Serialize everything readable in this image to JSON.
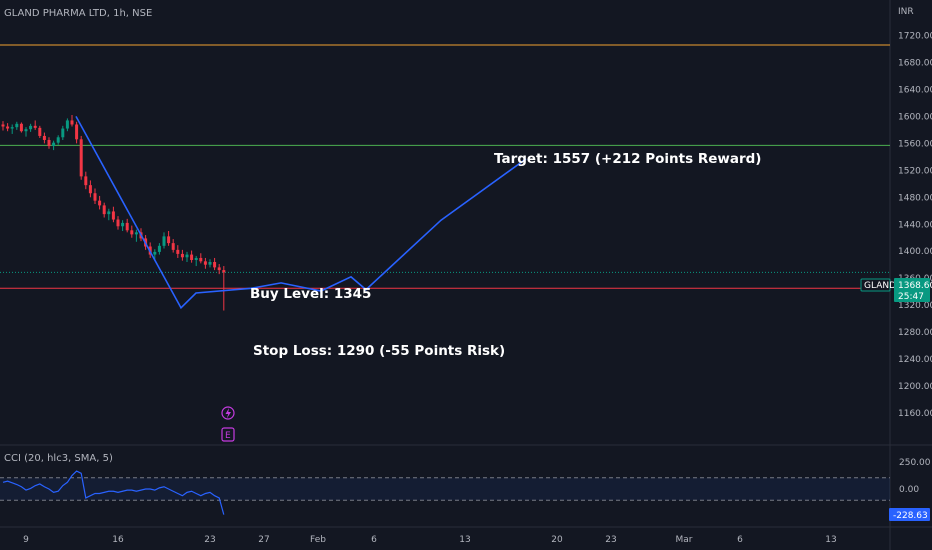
{
  "header": {
    "symbol_title": "GLAND PHARMA LTD, 1h, NSE",
    "currency": "INR"
  },
  "price_tag": {
    "symbol": "GLAND",
    "price": "1368.60",
    "countdown": "25:47",
    "color": "#089981"
  },
  "indicator": {
    "label": "CCI (20, hlc3, SMA, 5)",
    "ticks": [
      "250.00",
      "0.00"
    ],
    "current_value": "-228.63",
    "band_upper": 100,
    "band_lower": -100,
    "color": "#2962ff"
  },
  "annotations": {
    "target": "Target: 1557 (+212 Points Reward)",
    "buy": "Buy Level: 1345",
    "stop": "Stop Loss: 1290 (-55 Points Risk)"
  },
  "markers": {
    "dividend_icon": "lightning-icon",
    "earnings_label": "E"
  },
  "chart_data": {
    "type": "candlestick",
    "title": "GLAND PHARMA LTD, 1h, NSE",
    "x_ticks": [
      "9",
      "16",
      "23",
      "27",
      "Feb",
      "6",
      "13",
      "20",
      "23",
      "Mar",
      "6",
      "13"
    ],
    "y_ticks": [
      1720,
      1680,
      1640,
      1600,
      1560,
      1520,
      1480,
      1440,
      1400,
      1360,
      1320,
      1280,
      1240,
      1200,
      1160
    ],
    "ylim": [
      1140,
      1750
    ],
    "horizontal_lines": [
      {
        "value": 1706,
        "color": "#f0a030"
      },
      {
        "value": 1557,
        "color": "#4caf50"
      },
      {
        "value": 1345,
        "color": "#f23645"
      },
      {
        "value": 1368.6,
        "color": "#089981",
        "style": "dotted"
      }
    ],
    "projection_path": [
      {
        "bar": 0,
        "value": 1600
      },
      {
        "bar": 21,
        "value": 1316
      },
      {
        "bar": 24,
        "value": 1338
      },
      {
        "bar": 35,
        "value": 1345
      },
      {
        "bar": 41,
        "value": 1353
      },
      {
        "bar": 49,
        "value": 1341
      },
      {
        "bar": 55,
        "value": 1362
      },
      {
        "bar": 58,
        "value": 1343
      },
      {
        "bar": 73,
        "value": 1446
      },
      {
        "bar": 90,
        "value": 1537
      }
    ],
    "candles": [
      [
        1588,
        1593,
        1579,
        1585
      ],
      [
        1585,
        1590,
        1578,
        1582
      ],
      [
        1582,
        1588,
        1574,
        1584
      ],
      [
        1584,
        1592,
        1580,
        1589
      ],
      [
        1589,
        1591,
        1576,
        1578
      ],
      [
        1578,
        1584,
        1570,
        1581
      ],
      [
        1581,
        1589,
        1577,
        1586
      ],
      [
        1586,
        1594,
        1580,
        1583
      ],
      [
        1583,
        1586,
        1568,
        1571
      ],
      [
        1571,
        1576,
        1560,
        1565
      ],
      [
        1565,
        1569,
        1552,
        1556
      ],
      [
        1556,
        1564,
        1550,
        1561
      ],
      [
        1561,
        1572,
        1558,
        1569
      ],
      [
        1569,
        1586,
        1565,
        1582
      ],
      [
        1582,
        1597,
        1578,
        1594
      ],
      [
        1594,
        1602,
        1585,
        1588
      ],
      [
        1588,
        1592,
        1560,
        1566
      ],
      [
        1566,
        1571,
        1506,
        1511
      ],
      [
        1511,
        1518,
        1492,
        1498
      ],
      [
        1498,
        1505,
        1480,
        1486
      ],
      [
        1486,
        1493,
        1470,
        1475
      ],
      [
        1475,
        1482,
        1462,
        1468
      ],
      [
        1468,
        1472,
        1450,
        1455
      ],
      [
        1455,
        1463,
        1446,
        1459
      ],
      [
        1459,
        1466,
        1443,
        1447
      ],
      [
        1447,
        1452,
        1432,
        1437
      ],
      [
        1437,
        1446,
        1430,
        1442
      ],
      [
        1442,
        1448,
        1428,
        1431
      ],
      [
        1431,
        1438,
        1420,
        1425
      ],
      [
        1425,
        1432,
        1414,
        1428
      ],
      [
        1428,
        1434,
        1415,
        1419
      ],
      [
        1419,
        1424,
        1402,
        1407
      ],
      [
        1407,
        1413,
        1390,
        1395
      ],
      [
        1395,
        1403,
        1386,
        1399
      ],
      [
        1399,
        1412,
        1395,
        1408
      ],
      [
        1408,
        1428,
        1404,
        1422
      ],
      [
        1422,
        1430,
        1408,
        1412
      ],
      [
        1412,
        1418,
        1398,
        1402
      ],
      [
        1402,
        1409,
        1390,
        1396
      ],
      [
        1396,
        1402,
        1386,
        1391
      ],
      [
        1391,
        1399,
        1384,
        1395
      ],
      [
        1395,
        1401,
        1383,
        1387
      ],
      [
        1387,
        1393,
        1378,
        1390
      ],
      [
        1390,
        1397,
        1382,
        1385
      ],
      [
        1385,
        1390,
        1374,
        1380
      ],
      [
        1380,
        1388,
        1376,
        1384
      ],
      [
        1384,
        1390,
        1372,
        1376
      ],
      [
        1376,
        1381,
        1366,
        1372
      ],
      [
        1372,
        1378,
        1312,
        1368.6
      ]
    ],
    "cci_values": [
      60,
      70,
      55,
      40,
      20,
      -10,
      5,
      30,
      45,
      20,
      0,
      -30,
      -20,
      30,
      60,
      120,
      160,
      140,
      -80,
      -60,
      -40,
      -40,
      -30,
      -20,
      -20,
      -30,
      -20,
      -10,
      -10,
      -20,
      -10,
      0,
      0,
      -10,
      10,
      20,
      0,
      -20,
      -40,
      -60,
      -30,
      -20,
      -40,
      -60,
      -40,
      -30,
      -60,
      -80,
      -228.63
    ]
  }
}
